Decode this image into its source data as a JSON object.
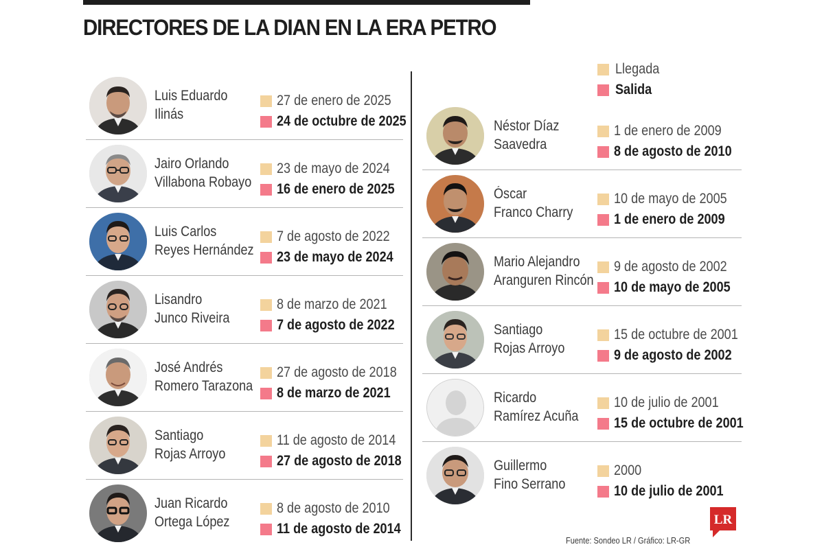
{
  "title": "DIRECTORES DE LA DIAN EN LA ERA PETRO",
  "legend": {
    "arrival_label": "Llegada",
    "departure_label": "Salida"
  },
  "colors": {
    "arrival": "#f3d39d",
    "departure": "#f47a8a",
    "title": "#1e1e1e",
    "brand_red": "#d52a2a"
  },
  "left_column": [
    {
      "name_line1": "Luis Eduardo",
      "name_line2": "Ilinás",
      "arrival": "27 de enero de 2025",
      "departure": "24 de octubre de 2025"
    },
    {
      "name_line1": "Jairo Orlando",
      "name_line2": "Villabona Robayo",
      "arrival": "23 de mayo de 2024",
      "departure": "16 de enero de 2025"
    },
    {
      "name_line1": "Luis Carlos",
      "name_line2": "Reyes Hernández",
      "arrival": "7 de agosto de 2022",
      "departure": "23 de mayo de 2024"
    },
    {
      "name_line1": "Lisandro",
      "name_line2": "Junco Riveira",
      "arrival": "8 de marzo de 2021",
      "departure": "7 de agosto de 2022"
    },
    {
      "name_line1": "José Andrés",
      "name_line2": "Romero Tarazona",
      "arrival": "27 de agosto de 2018",
      "departure": "8 de marzo de 2021"
    },
    {
      "name_line1": "Santiago",
      "name_line2": "Rojas Arroyo",
      "arrival": "11 de agosto de 2014",
      "departure": "27 de agosto de 2018"
    },
    {
      "name_line1": "Juan Ricardo",
      "name_line2": "Ortega López",
      "arrival": "8 de agosto de 2010",
      "departure": "11 de agosto de 2014"
    }
  ],
  "right_column": [
    {
      "name_line1": "Néstor Díaz",
      "name_line2": "Saavedra",
      "arrival": "1 de enero de 2009",
      "departure": "8 de agosto de 2010"
    },
    {
      "name_line1": "Óscar",
      "name_line2": "Franco Charry",
      "arrival": "10 de mayo de 2005",
      "departure": "1 de enero de 2009"
    },
    {
      "name_line1": "Mario Alejandro",
      "name_line2": "Aranguren Rincón",
      "arrival": "9 de agosto de 2002",
      "departure": "10 de mayo de 2005"
    },
    {
      "name_line1": "Santiago",
      "name_line2": "Rojas Arroyo",
      "arrival": "15 de octubre de 2001",
      "departure": "9 de agosto de 2002"
    },
    {
      "name_line1": "Ricardo",
      "name_line2": "Ramírez Acuña",
      "arrival": "10 de julio de 2001",
      "departure": "15 de octubre de 2001"
    },
    {
      "name_line1": "Guillermo",
      "name_line2": "Fino Serrano",
      "arrival": "2000",
      "departure": "10 de julio de 2001"
    }
  ],
  "footer": "Fuente: Sondeo LR / Gráfico: LR-GR",
  "logo_text": "LR"
}
